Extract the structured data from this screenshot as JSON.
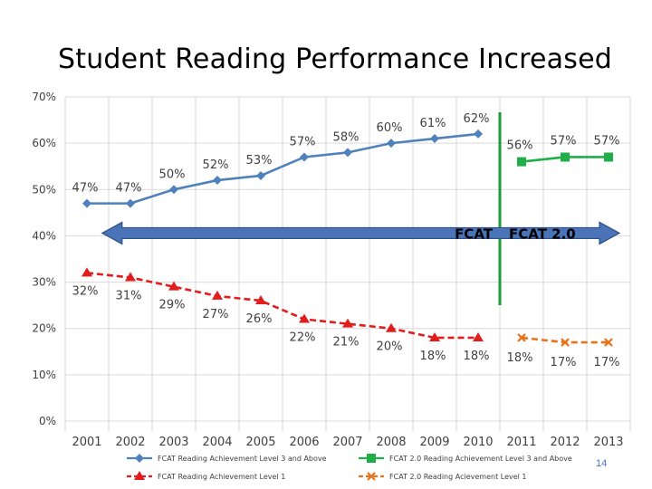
{
  "slide": {
    "title": "Student Reading Performance Increased",
    "page_number": "14"
  },
  "colors": {
    "fcat_level3": "#4f81bd",
    "fcat20_level3": "#1fae48",
    "fcat_level1": "#e11d1d",
    "fcat20_level1": "#e8731c",
    "divider": "#1f9a3a",
    "arrow_fill": "#4a73b8",
    "arrow_stroke": "#2c4f86",
    "grid": "#d9d9d9"
  },
  "chart_data": {
    "type": "line",
    "title": "",
    "xlabel": "",
    "ylabel": "",
    "ylim": [
      0,
      70
    ],
    "y_ticks": [
      0,
      10,
      20,
      30,
      40,
      50,
      60,
      70
    ],
    "y_tick_labels": [
      "0%",
      "10%",
      "20%",
      "30%",
      "40%",
      "50%",
      "60%",
      "70%"
    ],
    "grid": true,
    "legend_placement": "bottom",
    "categories": [
      "2001",
      "2002",
      "2003",
      "2004",
      "2005",
      "2006",
      "2007",
      "2008",
      "2009",
      "2010",
      "2011",
      "2012",
      "2013"
    ],
    "series": [
      {
        "name": "FCAT Reading Achievement Level 3 and Above",
        "key": "fcat_level3",
        "style": "solid",
        "marker": "diamond",
        "x": [
          "2001",
          "2002",
          "2003",
          "2004",
          "2005",
          "2006",
          "2007",
          "2008",
          "2009",
          "2010"
        ],
        "values": [
          47,
          47,
          50,
          52,
          53,
          57,
          58,
          60,
          61,
          62
        ],
        "labels": [
          "47%",
          "47%",
          "50%",
          "52%",
          "53%",
          "57%",
          "58%",
          "60%",
          "61%",
          "62%"
        ]
      },
      {
        "name": "FCAT 2.0 Reading Achievement Level 3 and Above",
        "key": "fcat20_level3",
        "style": "solid",
        "marker": "square",
        "x": [
          "2011",
          "2012",
          "2013"
        ],
        "values": [
          56,
          57,
          57
        ],
        "labels": [
          "56%",
          "57%",
          "57%"
        ]
      },
      {
        "name": "FCAT Reading Achievement Level 1",
        "key": "fcat_level1",
        "style": "dashed",
        "marker": "triangle",
        "x": [
          "2001",
          "2002",
          "2003",
          "2004",
          "2005",
          "2006",
          "2007",
          "2008",
          "2009",
          "2010"
        ],
        "values": [
          32,
          31,
          29,
          27,
          26,
          22,
          21,
          20,
          18,
          18
        ],
        "labels": [
          "32%",
          "31%",
          "29%",
          "27%",
          "26%",
          "22%",
          "21%",
          "20%",
          "18%",
          "18%"
        ]
      },
      {
        "name": "FCAT 2.0 Reading Acievement Level 1",
        "key": "fcat20_level1",
        "style": "dashed",
        "marker": "x",
        "x": [
          "2011",
          "2012",
          "2013"
        ],
        "values": [
          18,
          17,
          17
        ],
        "labels": [
          "18%",
          "17%",
          "17%"
        ]
      }
    ],
    "annotations": {
      "left_label": "FCAT",
      "right_label": "FCAT 2.0",
      "arrow_value": 40
    }
  }
}
